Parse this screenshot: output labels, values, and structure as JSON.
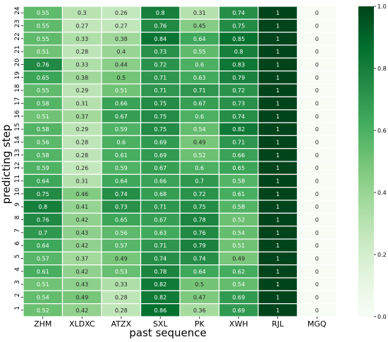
{
  "chart_data": {
    "type": "heatmap",
    "title": "",
    "xlabel": "past sequence",
    "ylabel": "predicting step",
    "x_categories": [
      "ZHM",
      "XLDXC",
      "ATZX",
      "SXL",
      "PK",
      "XWH",
      "RJL",
      "MGQ"
    ],
    "y_categories": [
      "24",
      "23",
      "22",
      "21",
      "20",
      "19",
      "18",
      "17",
      "16",
      "15",
      "14",
      "13",
      "12",
      "11",
      "10",
      "9",
      "8",
      "7",
      "6",
      "5",
      "4",
      "3",
      "2",
      "1"
    ],
    "values": [
      [
        0.55,
        0.3,
        0.26,
        0.8,
        0.31,
        0.74,
        1,
        0
      ],
      [
        0.55,
        0.27,
        0.27,
        0.76,
        0.45,
        0.75,
        1,
        0
      ],
      [
        0.55,
        0.33,
        0.38,
        0.84,
        0.64,
        0.85,
        1,
        0
      ],
      [
        0.51,
        0.28,
        0.4,
        0.73,
        0.55,
        0.8,
        1,
        0
      ],
      [
        0.76,
        0.33,
        0.44,
        0.72,
        0.6,
        0.83,
        1,
        0
      ],
      [
        0.65,
        0.38,
        0.5,
        0.71,
        0.63,
        0.79,
        1,
        0
      ],
      [
        0.55,
        0.29,
        0.51,
        0.71,
        0.71,
        0.72,
        1,
        0
      ],
      [
        0.58,
        0.31,
        0.66,
        0.75,
        0.67,
        0.73,
        1,
        0
      ],
      [
        0.51,
        0.37,
        0.67,
        0.75,
        0.6,
        0.74,
        1,
        0
      ],
      [
        0.58,
        0.29,
        0.59,
        0.75,
        0.54,
        0.82,
        1,
        0
      ],
      [
        0.56,
        0.28,
        0.6,
        0.69,
        0.49,
        0.71,
        1,
        0
      ],
      [
        0.58,
        0.28,
        0.61,
        0.69,
        0.52,
        0.66,
        1,
        0
      ],
      [
        0.59,
        0.26,
        0.59,
        0.67,
        0.6,
        0.65,
        1,
        0
      ],
      [
        0.64,
        0.31,
        0.64,
        0.66,
        0.7,
        0.58,
        1,
        0
      ],
      [
        0.75,
        0.46,
        0.74,
        0.68,
        0.72,
        0.61,
        1,
        0
      ],
      [
        0.8,
        0.41,
        0.73,
        0.71,
        0.75,
        0.58,
        1,
        0
      ],
      [
        0.76,
        0.42,
        0.65,
        0.67,
        0.78,
        0.52,
        1,
        0
      ],
      [
        0.7,
        0.43,
        0.56,
        0.63,
        0.76,
        0.54,
        1,
        0
      ],
      [
        0.64,
        0.42,
        0.57,
        0.71,
        0.79,
        0.51,
        1,
        0
      ],
      [
        0.57,
        0.37,
        0.49,
        0.74,
        0.74,
        0.49,
        1,
        0
      ],
      [
        0.61,
        0.42,
        0.53,
        0.78,
        0.64,
        0.62,
        1,
        0
      ],
      [
        0.51,
        0.43,
        0.33,
        0.82,
        0.5,
        0.54,
        1,
        0
      ],
      [
        0.54,
        0.49,
        0.28,
        0.82,
        0.47,
        0.69,
        1,
        0
      ],
      [
        0.52,
        0.42,
        0.28,
        0.86,
        0.36,
        0.69,
        1,
        0
      ]
    ],
    "colorbar": {
      "colormap": "Greens",
      "range": [
        0.0,
        1.0
      ],
      "ticks": [
        "0.0",
        "0.2",
        "0.4",
        "0.6",
        "0.8",
        "1.0"
      ],
      "colors": [
        "#f7fcf5",
        "#e5f5e0",
        "#c7e9c0",
        "#a1d99b",
        "#74c476",
        "#41ab5d",
        "#238b45",
        "#006d2c",
        "#00441b"
      ]
    },
    "grid": false,
    "cell_border_color": "#ffffff",
    "annotation_colors": {
      "on_light": "#262626",
      "on_dark": "#ffffff"
    }
  }
}
